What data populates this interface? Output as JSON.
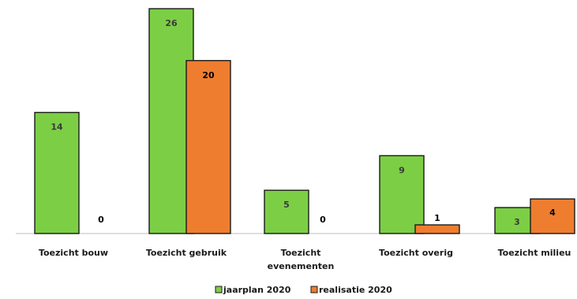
{
  "chart_data": {
    "type": "bar",
    "categories": [
      [
        "Toezicht bouw"
      ],
      [
        "Toezicht gebruik"
      ],
      [
        "Toezicht",
        "evenementen"
      ],
      [
        "Toezicht overig"
      ],
      [
        "Toezicht milieu"
      ]
    ],
    "series": [
      {
        "name": "jaarplan 2020",
        "values": [
          14,
          26,
          5,
          9,
          3
        ],
        "color": "#7ccf45",
        "label_color": "#3a3a3a"
      },
      {
        "name": "realisatie 2020",
        "values": [
          0,
          20,
          0,
          1,
          4
        ],
        "color": "#ee7d2f",
        "label_color": "#000000"
      }
    ],
    "ylim": [
      0,
      26
    ],
    "grid": false,
    "legend_position": "bottom",
    "bar_outline": "#1a1a1a"
  }
}
